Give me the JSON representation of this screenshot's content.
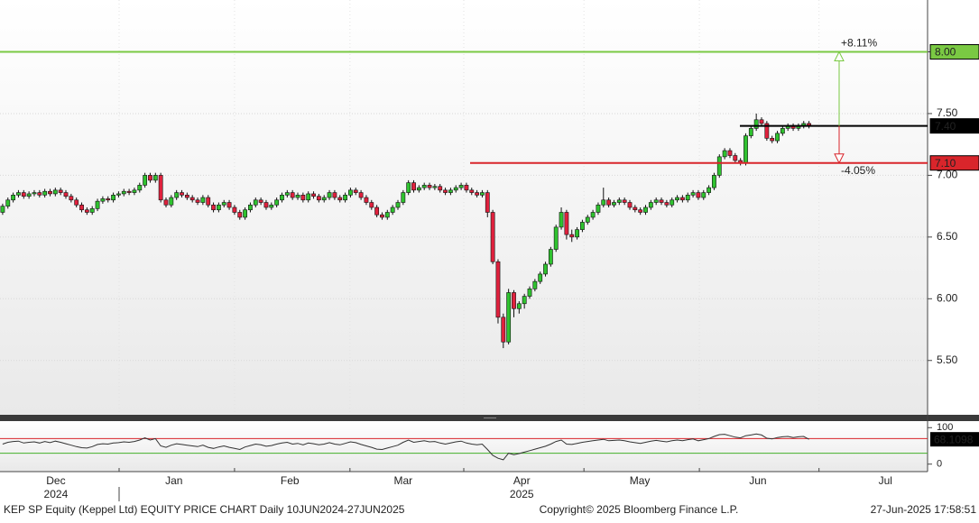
{
  "chart_data": {
    "type": "candlestick",
    "footer_title": "KEP SP Equity (Keppel Ltd) EQUITY PRICE CHART  Daily 10JUN2024-27JUN2025",
    "copyright": "Copyright© 2025 Bloomberg Finance L.P.",
    "timestamp": "27-Jun-2025 17:58:51",
    "xlim": [
      0,
      176
    ],
    "xticks": [
      22.6,
      44.5,
      66.4,
      88,
      110.8,
      132.7,
      155.4
    ],
    "month_labels": [
      {
        "value": 10.6,
        "label": "Dec"
      },
      {
        "value": 33,
        "label": "Jan"
      },
      {
        "value": 55,
        "label": "Feb"
      },
      {
        "value": 76.5,
        "label": "Mar"
      },
      {
        "value": 99,
        "label": "Apr"
      },
      {
        "value": 121.4,
        "label": "May"
      },
      {
        "value": 143.8,
        "label": "Jun"
      },
      {
        "value": 168,
        "label": "Jul"
      }
    ],
    "year_labels": [
      {
        "value": 10.6,
        "label": "2024"
      },
      {
        "value": 99,
        "label": "2025"
      }
    ],
    "ylim": [
      5.06,
      8.42
    ],
    "yticks": [
      {
        "value": 5.5,
        "label": "5.50"
      },
      {
        "value": 6,
        "label": "6.00"
      },
      {
        "value": 6.5,
        "label": "6.50"
      },
      {
        "value": 7,
        "label": "7.00"
      },
      {
        "value": 7.5,
        "label": "7.50"
      },
      {
        "value": 8,
        "label": "8.00"
      }
    ],
    "up_color": "#2fc22f",
    "down_color": "#e0213d",
    "open": [
      6.7,
      6.75,
      6.8,
      6.84,
      6.86,
      6.83,
      6.85,
      6.86,
      6.84,
      6.87,
      6.85,
      6.88,
      6.86,
      6.83,
      6.8,
      6.76,
      6.72,
      6.7,
      6.73,
      6.79,
      6.81,
      6.8,
      6.84,
      6.85,
      6.87,
      6.86,
      6.88,
      6.92,
      7.0,
      6.96,
      7.0,
      6.8,
      6.76,
      6.82,
      6.86,
      6.84,
      6.82,
      6.8,
      6.78,
      6.82,
      6.76,
      6.72,
      6.76,
      6.78,
      6.74,
      6.7,
      6.66,
      6.72,
      6.76,
      6.8,
      6.78,
      6.74,
      6.76,
      6.8,
      6.84,
      6.86,
      6.82,
      6.84,
      6.8,
      6.85,
      6.83,
      6.8,
      6.82,
      6.86,
      6.82,
      6.8,
      6.84,
      6.88,
      6.86,
      6.82,
      6.78,
      6.74,
      6.68,
      6.66,
      6.7,
      6.74,
      6.78,
      6.86,
      6.94,
      6.88,
      6.9,
      6.92,
      6.9,
      6.91,
      6.88,
      6.86,
      6.88,
      6.9,
      6.92,
      6.88,
      6.86,
      6.84,
      6.86,
      6.7,
      6.3,
      5.85,
      5.65,
      6.05,
      5.92,
      5.96,
      6.02,
      6.08,
      6.14,
      6.2,
      6.28,
      6.4,
      6.58,
      6.7,
      6.52,
      6.5,
      6.56,
      6.62,
      6.66,
      6.7,
      6.76,
      6.8,
      6.76,
      6.78,
      6.8,
      6.78,
      6.74,
      6.72,
      6.7,
      6.74,
      6.78,
      6.8,
      6.78,
      6.76,
      6.8,
      6.82,
      6.8,
      6.84,
      6.86,
      6.82,
      6.86,
      6.9,
      7.0,
      7.15,
      7.2,
      7.16,
      7.12,
      7.1,
      7.32,
      7.38,
      7.45,
      7.42,
      7.3,
      7.28,
      7.34,
      7.38,
      7.4,
      7.38,
      7.4,
      7.42
    ],
    "high": [
      6.77,
      6.82,
      6.86,
      6.88,
      6.88,
      6.87,
      6.88,
      6.88,
      6.89,
      6.89,
      6.9,
      6.9,
      6.88,
      6.85,
      6.82,
      6.78,
      6.74,
      6.75,
      6.81,
      6.83,
      6.83,
      6.86,
      6.87,
      6.89,
      6.89,
      6.9,
      6.94,
      7.02,
      7.02,
      7.02,
      7.02,
      6.82,
      6.84,
      6.88,
      6.88,
      6.86,
      6.84,
      6.82,
      6.84,
      6.84,
      6.78,
      6.78,
      6.8,
      6.8,
      6.76,
      6.72,
      6.74,
      6.78,
      6.82,
      6.82,
      6.8,
      6.78,
      6.82,
      6.86,
      6.88,
      6.88,
      6.86,
      6.86,
      6.87,
      6.87,
      6.85,
      6.84,
      6.88,
      6.88,
      6.84,
      6.86,
      6.9,
      6.9,
      6.88,
      6.84,
      6.8,
      6.76,
      6.7,
      6.72,
      6.76,
      6.8,
      6.88,
      6.96,
      6.96,
      6.92,
      6.94,
      6.94,
      6.93,
      6.93,
      6.9,
      6.9,
      6.92,
      6.94,
      6.94,
      6.9,
      6.88,
      6.88,
      6.88,
      6.72,
      6.32,
      5.88,
      6.08,
      6.07,
      5.98,
      6.04,
      6.1,
      6.16,
      6.22,
      6.3,
      6.42,
      6.6,
      6.74,
      6.72,
      6.56,
      6.58,
      6.64,
      6.68,
      6.72,
      6.78,
      6.9,
      6.82,
      6.8,
      6.82,
      6.82,
      6.8,
      6.76,
      6.74,
      6.76,
      6.8,
      6.82,
      6.82,
      6.8,
      6.82,
      6.84,
      6.84,
      6.86,
      6.88,
      6.88,
      6.88,
      6.92,
      7.02,
      7.17,
      7.22,
      7.22,
      7.18,
      7.14,
      7.34,
      7.4,
      7.5,
      7.47,
      7.44,
      7.32,
      7.36,
      7.4,
      7.42,
      7.42,
      7.42,
      7.44,
      7.44
    ],
    "low": [
      6.68,
      6.73,
      6.78,
      6.82,
      6.81,
      6.81,
      6.83,
      6.82,
      6.82,
      6.83,
      6.83,
      6.84,
      6.81,
      6.78,
      6.74,
      6.7,
      6.68,
      6.68,
      6.71,
      6.77,
      6.78,
      6.78,
      6.82,
      6.83,
      6.84,
      6.84,
      6.86,
      6.9,
      6.94,
      6.94,
      6.78,
      6.74,
      6.74,
      6.8,
      6.82,
      6.8,
      6.78,
      6.76,
      6.76,
      6.74,
      6.7,
      6.7,
      6.74,
      6.72,
      6.68,
      6.64,
      6.64,
      6.7,
      6.74,
      6.76,
      6.72,
      6.72,
      6.74,
      6.78,
      6.82,
      6.8,
      6.8,
      6.78,
      6.78,
      6.81,
      6.78,
      6.78,
      6.8,
      6.8,
      6.78,
      6.78,
      6.82,
      6.84,
      6.8,
      6.76,
      6.72,
      6.66,
      6.64,
      6.64,
      6.68,
      6.72,
      6.76,
      6.84,
      6.86,
      6.86,
      6.88,
      6.88,
      6.88,
      6.86,
      6.84,
      6.84,
      6.86,
      6.88,
      6.86,
      6.84,
      6.82,
      6.82,
      6.66,
      6.28,
      5.8,
      5.6,
      5.63,
      5.85,
      5.88,
      5.92,
      6.0,
      6.06,
      6.12,
      6.18,
      6.26,
      6.38,
      6.56,
      6.48,
      6.46,
      6.48,
      6.54,
      6.6,
      6.64,
      6.68,
      6.74,
      6.74,
      6.74,
      6.76,
      6.76,
      6.72,
      6.7,
      6.68,
      6.68,
      6.72,
      6.76,
      6.76,
      6.74,
      6.74,
      6.78,
      6.78,
      6.78,
      6.82,
      6.8,
      6.8,
      6.84,
      6.88,
      6.98,
      7.13,
      7.14,
      7.1,
      7.08,
      7.08,
      7.3,
      7.36,
      7.4,
      7.28,
      7.26,
      7.26,
      7.32,
      7.36,
      7.36,
      7.36,
      7.38,
      7.38
    ],
    "close": [
      6.75,
      6.8,
      6.84,
      6.86,
      6.83,
      6.85,
      6.86,
      6.84,
      6.87,
      6.85,
      6.88,
      6.86,
      6.83,
      6.8,
      6.76,
      6.72,
      6.7,
      6.73,
      6.79,
      6.81,
      6.8,
      6.84,
      6.85,
      6.87,
      6.86,
      6.88,
      6.92,
      7.0,
      6.96,
      7.0,
      6.8,
      6.76,
      6.82,
      6.86,
      6.84,
      6.82,
      6.8,
      6.78,
      6.82,
      6.76,
      6.72,
      6.76,
      6.78,
      6.74,
      6.7,
      6.66,
      6.72,
      6.76,
      6.8,
      6.78,
      6.74,
      6.76,
      6.8,
      6.84,
      6.86,
      6.82,
      6.84,
      6.8,
      6.85,
      6.83,
      6.8,
      6.82,
      6.86,
      6.82,
      6.8,
      6.84,
      6.88,
      6.86,
      6.82,
      6.78,
      6.74,
      6.68,
      6.66,
      6.7,
      6.74,
      6.78,
      6.86,
      6.94,
      6.88,
      6.9,
      6.92,
      6.9,
      6.91,
      6.88,
      6.86,
      6.88,
      6.9,
      6.92,
      6.88,
      6.86,
      6.84,
      6.86,
      6.7,
      6.3,
      5.85,
      5.65,
      6.05,
      5.92,
      5.96,
      6.02,
      6.08,
      6.14,
      6.2,
      6.28,
      6.4,
      6.58,
      6.7,
      6.52,
      6.5,
      6.56,
      6.62,
      6.66,
      6.7,
      6.76,
      6.8,
      6.76,
      6.78,
      6.8,
      6.78,
      6.74,
      6.72,
      6.7,
      6.74,
      6.78,
      6.8,
      6.78,
      6.76,
      6.8,
      6.82,
      6.8,
      6.84,
      6.86,
      6.82,
      6.86,
      6.9,
      7.0,
      7.15,
      7.2,
      7.16,
      7.12,
      7.1,
      7.32,
      7.38,
      7.45,
      7.42,
      7.3,
      7.28,
      7.34,
      7.38,
      7.4,
      7.38,
      7.4,
      7.42,
      7.4
    ],
    "levels": [
      {
        "value": 8,
        "label": "8.00",
        "color": "#7ac943"
      },
      {
        "value": 7.4,
        "label": "7.40",
        "color": "#000000"
      },
      {
        "value": 7.1,
        "label": "7.10",
        "color": "#d9252b"
      }
    ],
    "annotations": [
      {
        "text": "+8.11%",
        "color": "#7ac943"
      },
      {
        "text": "-4.05%",
        "color": "#d9252b"
      }
    ],
    "rsi": {
      "ylim": [
        -20.5,
        118
      ],
      "yticks": [
        0,
        100
      ],
      "color": "#333333",
      "levels": [
        {
          "value": 70,
          "color": "#d9252b"
        },
        {
          "value": 30,
          "color": "#43b02a"
        }
      ],
      "values": [
        55,
        60,
        62,
        63,
        58,
        60,
        61,
        58,
        62,
        59,
        63,
        60,
        56,
        52,
        48,
        45,
        44,
        48,
        54,
        56,
        55,
        58,
        59,
        61,
        60,
        62,
        66,
        72,
        66,
        70,
        50,
        46,
        52,
        56,
        54,
        52,
        50,
        48,
        52,
        46,
        43,
        47,
        50,
        46,
        43,
        40,
        47,
        51,
        55,
        53,
        49,
        51,
        55,
        58,
        60,
        55,
        57,
        53,
        58,
        56,
        53,
        55,
        59,
        55,
        53,
        57,
        61,
        59,
        54,
        50,
        46,
        41,
        40,
        44,
        48,
        52,
        60,
        66,
        60,
        62,
        64,
        61,
        62,
        58,
        55,
        58,
        61,
        63,
        58,
        55,
        53,
        55,
        40,
        24,
        16,
        12,
        30,
        26,
        29,
        33,
        37,
        41,
        45,
        49,
        55,
        62,
        66,
        55,
        54,
        57,
        60,
        62,
        64,
        66,
        68,
        64,
        65,
        66,
        64,
        61,
        59,
        57,
        60,
        63,
        65,
        63,
        61,
        64,
        66,
        64,
        67,
        69,
        64,
        67,
        70,
        76,
        81,
        82,
        78,
        74,
        72,
        78,
        80,
        83,
        80,
        71,
        69,
        73,
        75,
        76,
        73,
        75,
        76,
        68.1098
      ]
    }
  }
}
